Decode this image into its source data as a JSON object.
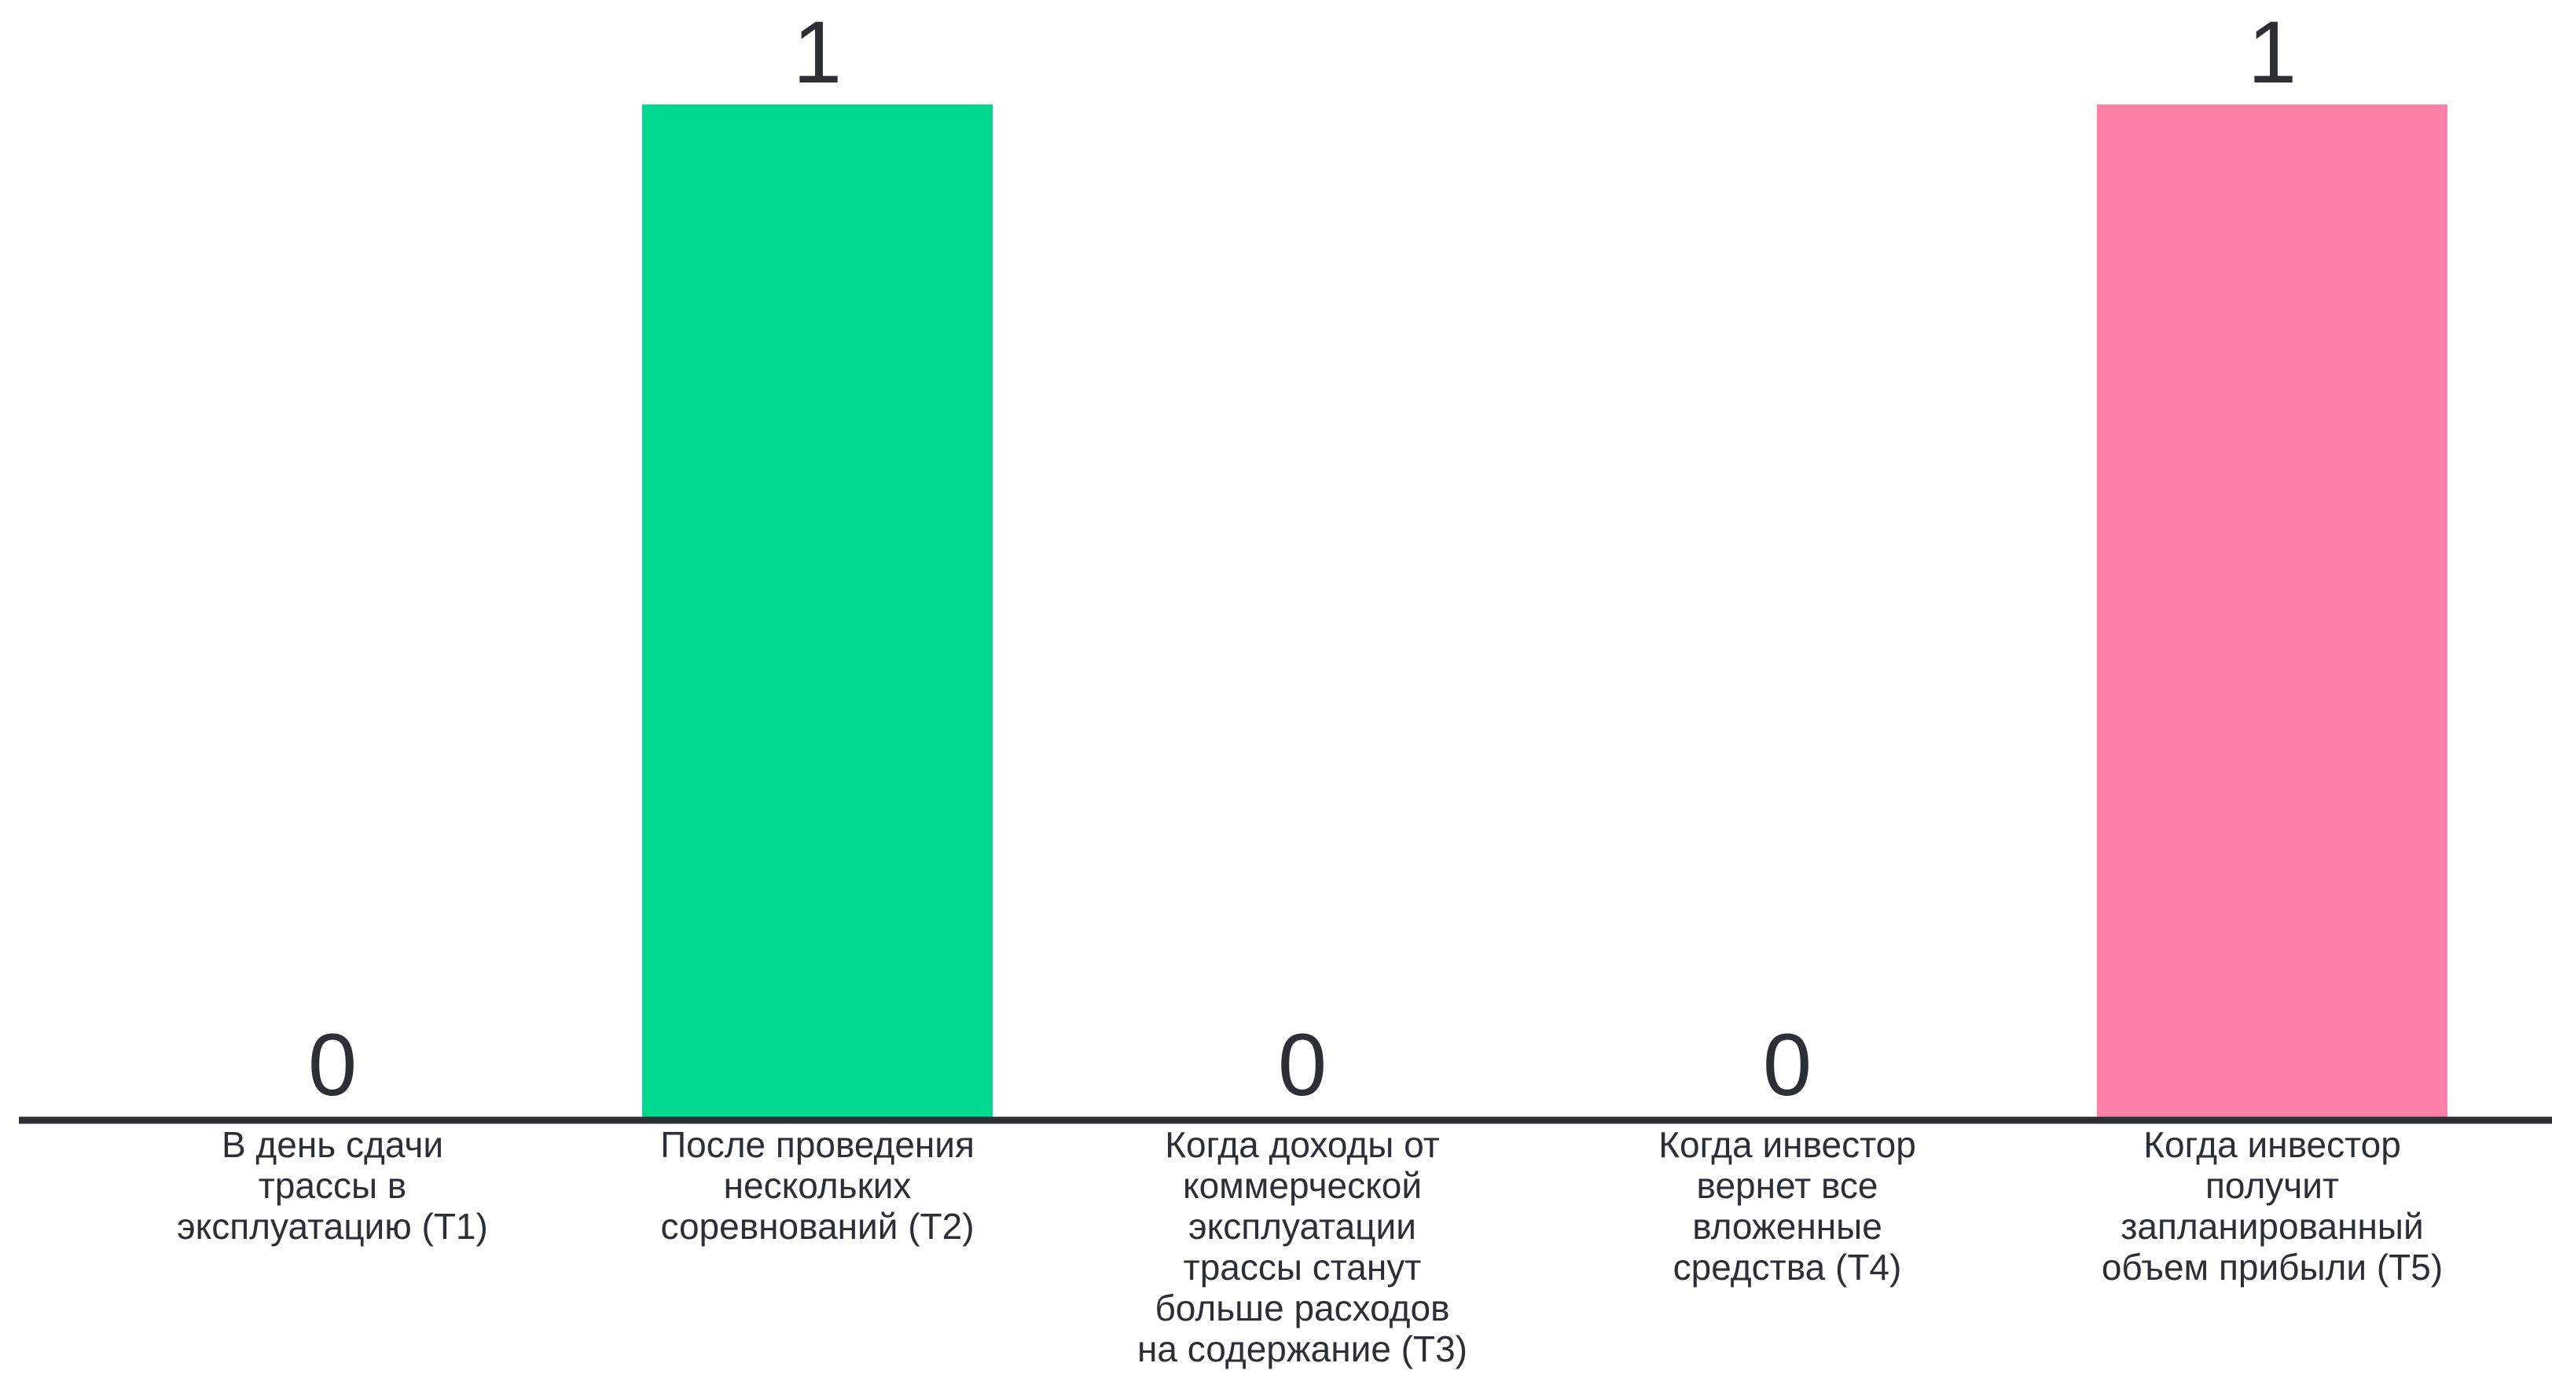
{
  "chart_data": {
    "type": "bar",
    "title": "",
    "xlabel": "",
    "ylabel": "",
    "ylim": [
      0,
      1
    ],
    "grid": false,
    "legend": "none",
    "categories": [
      "В день сдачи трассы в эксплуатацию (Т1)",
      "После проведения нескольких соревнований (Т2)",
      "Когда доходы от коммерческой эксплуатации трассы станут больше расходов на содержание (Т3)",
      "Когда инвестор вернет все вложенные средства (Т4)",
      "Когда инвестор получит запланированный объем прибыли (Т5)"
    ],
    "category_lines": [
      [
        "В день сдачи",
        "трассы в",
        "эксплуатацию (Т1)"
      ],
      [
        "После проведения",
        "нескольких",
        "соревнований (Т2)"
      ],
      [
        "Когда доходы от",
        "коммерческой",
        "эксплуатации",
        "трассы станут",
        "больше расходов",
        "на содержание (Т3)"
      ],
      [
        "Когда инвестор",
        "вернет все",
        "вложенные",
        "средства (Т4)"
      ],
      [
        "Когда инвестор",
        "получит",
        "запланированный",
        "объем прибыли (Т5)"
      ]
    ],
    "values": [
      0,
      1,
      0,
      0,
      1
    ],
    "data_labels": [
      "0",
      "1",
      "0",
      "0",
      "1"
    ],
    "colors": [
      "#00d88f",
      "#00d88f",
      "#00d88f",
      "#00d88f",
      "#ff80a6"
    ],
    "axis_color": "#2c2f36",
    "text_color": "#2c2f36"
  }
}
